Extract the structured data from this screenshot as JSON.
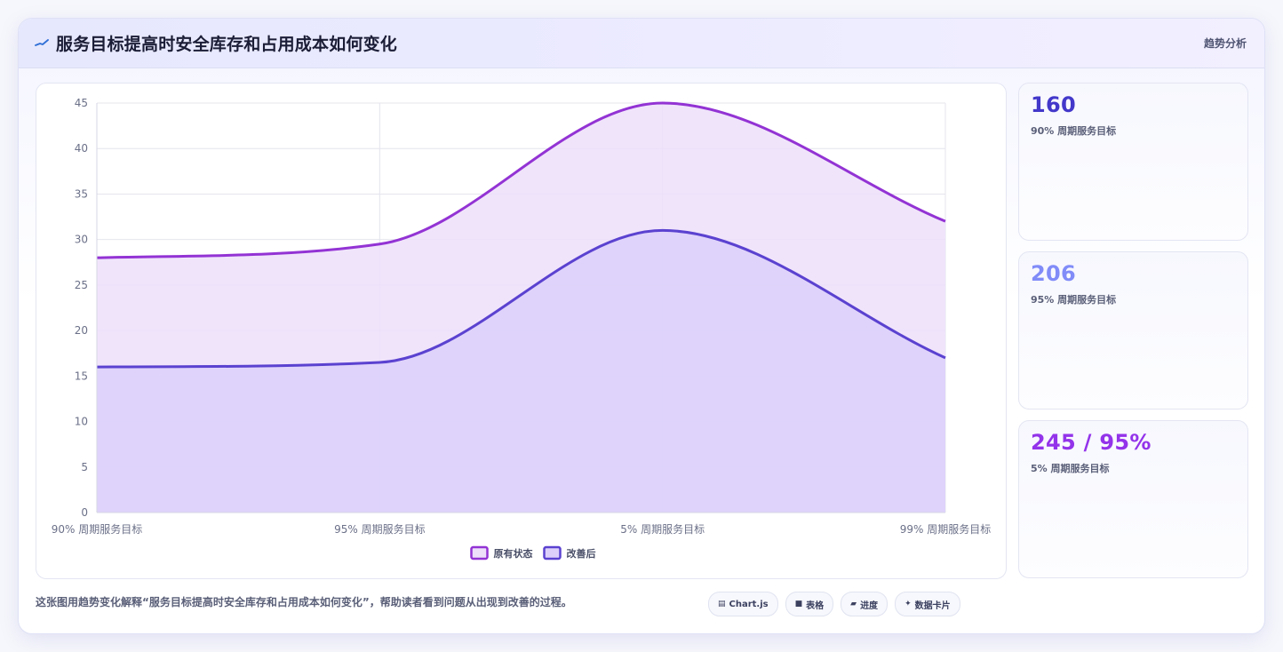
{
  "header": {
    "icon": "trend-line-icon",
    "title": "服务目标提高时安全库存和占用成本如何变化",
    "tag": "趋势分析"
  },
  "chart_data": {
    "type": "area",
    "categories": [
      "90% 周期服务目标",
      "95% 周期服务目标",
      "5% 周期服务目标",
      "99% 周期服务目标"
    ],
    "ylim": [
      0,
      45
    ],
    "yticks": [
      0,
      5,
      10,
      15,
      20,
      25,
      30,
      35,
      40,
      45
    ],
    "grid": true,
    "legend_position": "bottom",
    "series": [
      {
        "name": "原有状态",
        "values": [
          28,
          29.5,
          45,
          32
        ],
        "color": "#9333d4",
        "fill": "#eddffa"
      },
      {
        "name": "改善后",
        "values": [
          16,
          16.5,
          31,
          17
        ],
        "color": "#5b42d0",
        "fill": "#dcd0fa"
      }
    ]
  },
  "kpis": [
    {
      "value": "160",
      "label": "90% 周期服务目标",
      "color": "#4338ca"
    },
    {
      "value": "206",
      "label": "95% 周期服务目标",
      "color": "#818cf8"
    },
    {
      "value": "245 / 95%",
      "label": "5% 周期服务目标",
      "color": "#9333ea"
    }
  ],
  "footnote": "这张图用趋势变化解释“服务目标提高时安全库存和占用成本如何变化”，帮助读者看到问题从出现到改善的过程。",
  "chips": [
    {
      "icon": "chart-icon",
      "glyph": "▤",
      "label": "Chart.js"
    },
    {
      "icon": "table-icon",
      "glyph": "■",
      "label": "表格"
    },
    {
      "icon": "progress-icon",
      "glyph": "▰",
      "label": "进度"
    },
    {
      "icon": "sparkle-icon",
      "glyph": "✦",
      "label": "数据卡片"
    }
  ]
}
